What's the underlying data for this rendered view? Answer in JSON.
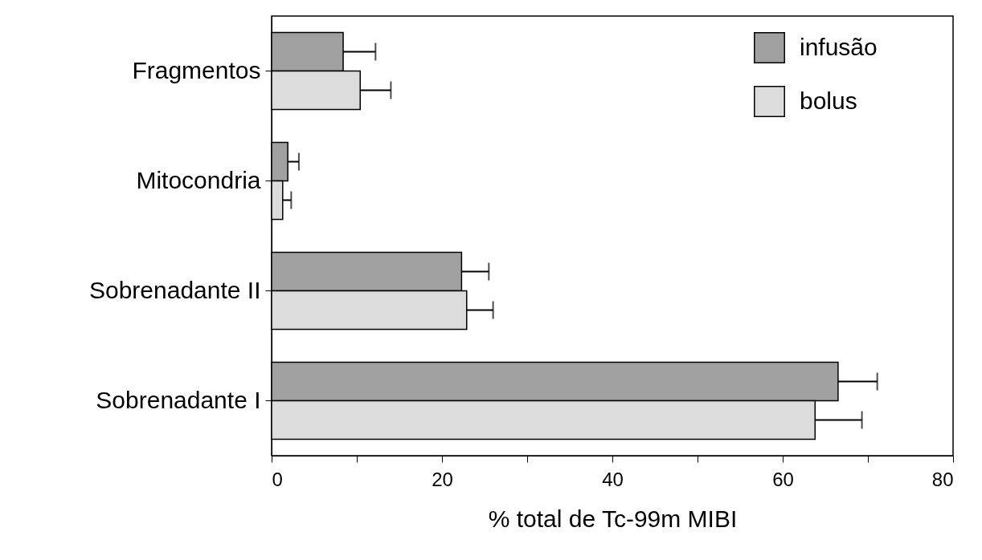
{
  "chart_data": {
    "type": "bar",
    "orientation": "horizontal",
    "xlabel": "% total de Tc-99m MIBI",
    "categories": [
      "Fragmentos",
      "Mitocondria",
      "Sobrenadante II",
      "Sobrenadante I"
    ],
    "series": [
      {
        "name": "infusão",
        "color": "#a0a0a0",
        "values": [
          8.4,
          1.9,
          22.3,
          66.5
        ],
        "errors": [
          [
            8.4,
            12.2
          ],
          [
            1.9,
            3.2
          ],
          [
            22.3,
            25.5
          ],
          [
            66.5,
            71.1
          ]
        ]
      },
      {
        "name": "bolus",
        "color": "#dcdcdc",
        "values": [
          10.4,
          1.3,
          22.9,
          63.8
        ],
        "errors": [
          [
            10.4,
            14.0
          ],
          [
            1.3,
            2.3
          ],
          [
            22.9,
            26.0
          ],
          [
            63.8,
            69.3
          ]
        ]
      }
    ],
    "xlim": [
      0,
      80
    ],
    "xticks": [
      0,
      {
        "value": 10,
        "label": null
      },
      20,
      {
        "value": 30,
        "label": null
      },
      40,
      {
        "value": 50,
        "label": null
      },
      60,
      {
        "value": 70,
        "label": null
      },
      80
    ],
    "legend": "top right",
    "grid": false
  }
}
